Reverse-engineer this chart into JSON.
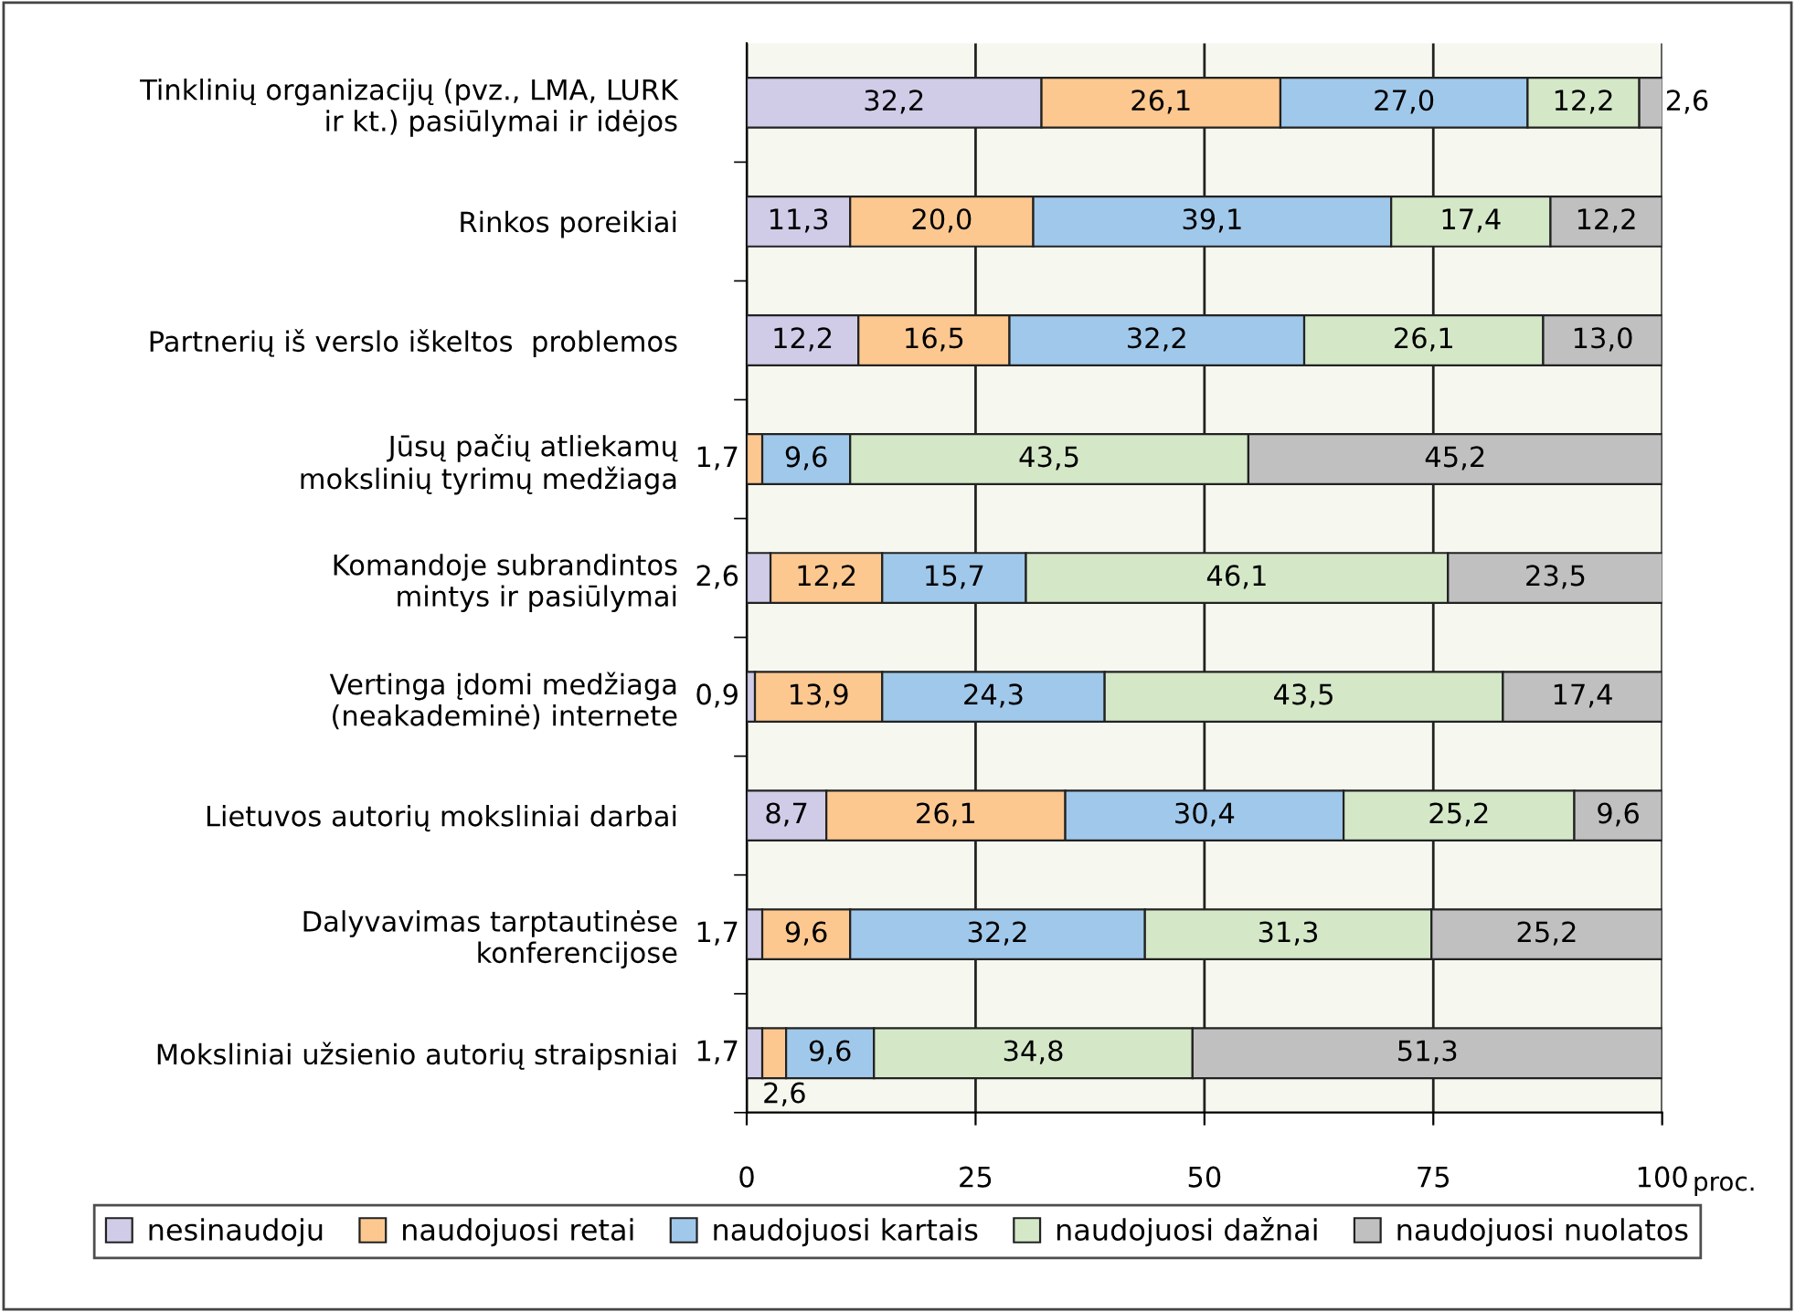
{
  "chart_data": {
    "type": "bar",
    "orientation": "horizontal",
    "stacked": true,
    "categories": [
      "Tinklinių organizacijų (pvz., LMA, LURK\nir kt.) pasiūlymai ir idėjos",
      "Rinkos poreikiai",
      "Partnerių iš verslo iškeltos  problemos",
      "Jūsų pačių atliekamų\nmokslinių tyrimų medžiaga",
      "Komandoje subrandintos\nmintys ir pasiūlymai",
      "Vertinga įdomi medžiaga\n(neakademinė) internete",
      "Lietuvos autorių moksliniai darbai",
      "Dalyvavimas tarptautinėse\nkonferencijose",
      "Moksliniai užsienio autorių straipsniai"
    ],
    "series": [
      {
        "name": "nesinaudoju",
        "color": "#d0cce8",
        "values": [
          32.2,
          11.3,
          12.2,
          0,
          2.6,
          0.9,
          8.7,
          1.7,
          1.7
        ],
        "value_labels": [
          "32,2",
          "11,3",
          "12,2",
          null,
          "2,6",
          "0,9",
          "8,7",
          "1,7",
          "1,7"
        ]
      },
      {
        "name": "naudojuosi retai",
        "color": "#fcc890",
        "values": [
          26.1,
          20.0,
          16.5,
          1.7,
          12.2,
          13.9,
          26.1,
          9.6,
          2.6
        ],
        "value_labels": [
          "26,1",
          "20,0",
          "16,5",
          "1,7",
          "12,2",
          "13,9",
          "26,1",
          "9,6",
          "2,6"
        ]
      },
      {
        "name": "naudojuosi kartais",
        "color": "#a0c8ea",
        "values": [
          27.0,
          39.1,
          32.2,
          9.6,
          15.7,
          24.3,
          30.4,
          32.2,
          9.6
        ],
        "value_labels": [
          "27,0",
          "39,1",
          "32,2",
          "9,6",
          "15,7",
          "24,3",
          "30,4",
          "32,2",
          "9,6"
        ]
      },
      {
        "name": "naudojuosi dažnai",
        "color": "#d4e8c8",
        "values": [
          12.2,
          17.4,
          26.1,
          43.5,
          46.1,
          43.5,
          25.2,
          31.3,
          34.8
        ],
        "value_labels": [
          "12,2",
          "17,4",
          "26,1",
          "43,5",
          "46,1",
          "43,5",
          "25,2",
          "31,3",
          "34,8"
        ]
      },
      {
        "name": "naudojuosi nuolatos",
        "color": "#c0c0c0",
        "values": [
          2.6,
          12.2,
          13.0,
          45.2,
          23.5,
          17.4,
          9.6,
          25.2,
          51.3
        ],
        "value_labels": [
          "2,6",
          "12,2",
          "13,0",
          "45,2",
          "23,5",
          "17,4",
          "9,6",
          "25,2",
          "51,3"
        ]
      }
    ],
    "xlim": [
      0,
      100
    ],
    "xticks": [
      0,
      25,
      50,
      75,
      100
    ],
    "grid": "x",
    "legend": "bottom",
    "annotations": [
      "proc."
    ]
  }
}
